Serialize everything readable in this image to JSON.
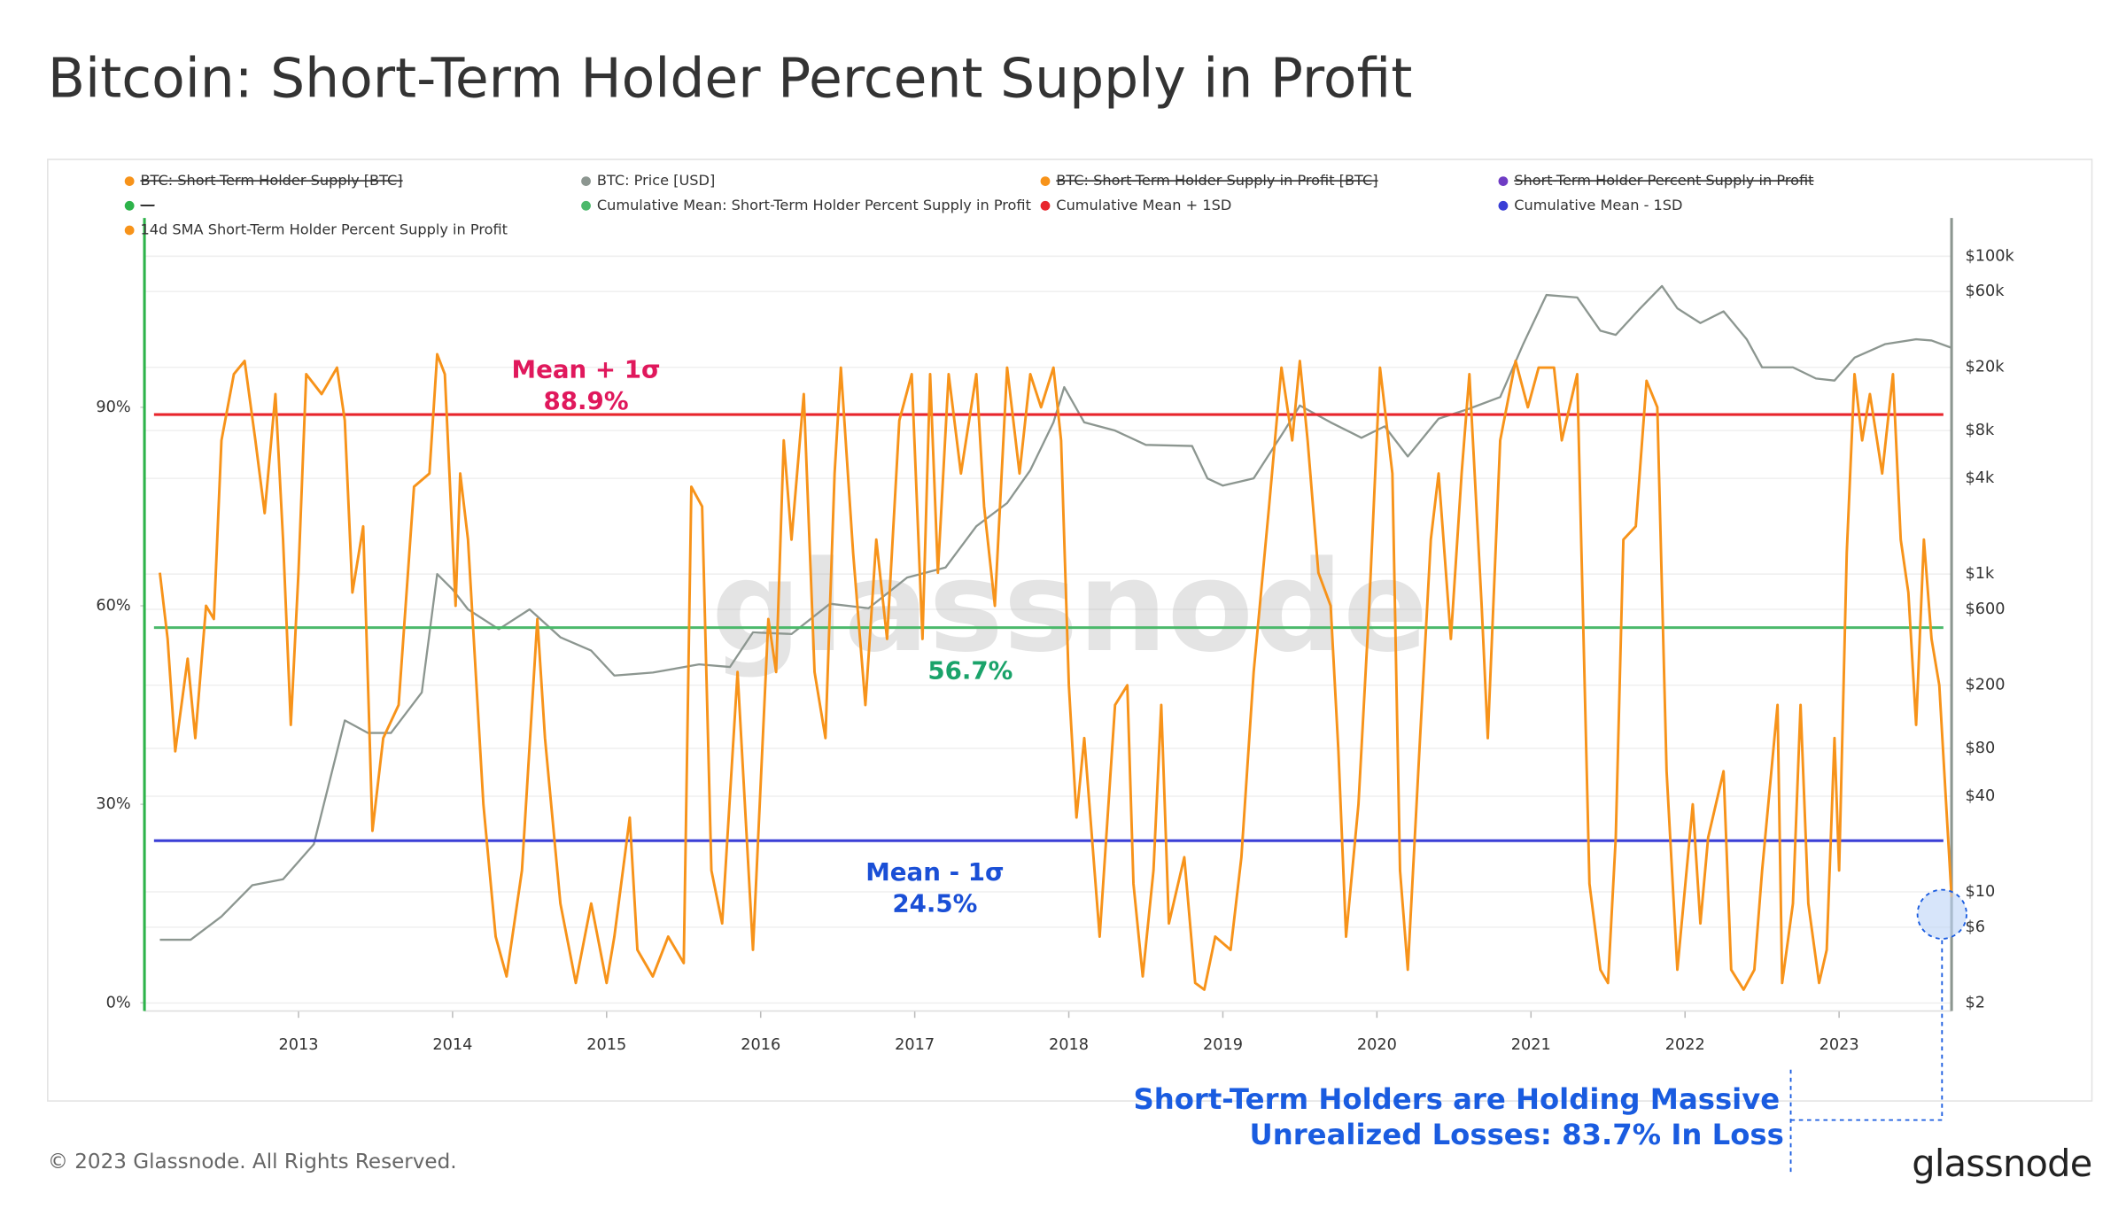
{
  "chart_data": {
    "type": "line",
    "title": "Bitcoin: Short-Term Holder Percent Supply in Profit",
    "watermark": "glassnode",
    "footer": "© 2023 Glassnode. All Rights Reserved.",
    "logo": "glassnode",
    "xlim": [
      2012,
      2023.73
    ],
    "xticks": [
      2013,
      2014,
      2015,
      2016,
      2017,
      2018,
      2019,
      2020,
      2021,
      2022,
      2023
    ],
    "ylim": [
      -1.24,
      118.6
    ],
    "yticks": [
      {
        "value": 0,
        "label": "0%"
      },
      {
        "value": 30,
        "label": "30%"
      },
      {
        "value": 60,
        "label": "60%"
      },
      {
        "value": 90,
        "label": "90%"
      }
    ],
    "y2lim": [
      1.78,
      174000
    ],
    "y2log": true,
    "y2ticks": [
      {
        "value": 2,
        "label": "$2"
      },
      {
        "value": 6,
        "label": "$6"
      },
      {
        "value": 10,
        "label": "$10"
      },
      {
        "value": 40,
        "label": "$40"
      },
      {
        "value": 80,
        "label": "$80"
      },
      {
        "value": 200,
        "label": "$200"
      },
      {
        "value": 600,
        "label": "$600"
      },
      {
        "value": 1000,
        "label": "$1k"
      },
      {
        "value": 4000,
        "label": "$4k"
      },
      {
        "value": 8000,
        "label": "$8k"
      },
      {
        "value": 20000,
        "label": "$20k"
      },
      {
        "value": 60000,
        "label": "$60k"
      },
      {
        "value": 100000,
        "label": "$100k"
      }
    ],
    "grid": true,
    "series": [
      {
        "name": "BTC: Short-Term Holder Supply [BTC]",
        "color": "#f7931a",
        "hidden": true
      },
      {
        "name": "BTC: Price [USD]",
        "color": "#8c9690",
        "axis": "y2",
        "x": [
          2012.1,
          2012.3,
          2012.5,
          2012.7,
          2012.9,
          2013.1,
          2013.3,
          2013.45,
          2013.6,
          2013.8,
          2013.9,
          2014.0,
          2014.1,
          2014.3,
          2014.5,
          2014.7,
          2014.9,
          2015.05,
          2015.3,
          2015.6,
          2015.8,
          2015.95,
          2016.2,
          2016.45,
          2016.7,
          2016.95,
          2017.2,
          2017.4,
          2017.6,
          2017.75,
          2017.9,
          2017.97,
          2018.1,
          2018.3,
          2018.5,
          2018.8,
          2018.9,
          2019.0,
          2019.2,
          2019.4,
          2019.5,
          2019.7,
          2019.9,
          2020.05,
          2020.2,
          2020.4,
          2020.6,
          2020.8,
          2020.95,
          2021.1,
          2021.3,
          2021.45,
          2021.55,
          2021.7,
          2021.85,
          2021.95,
          2022.1,
          2022.25,
          2022.4,
          2022.5,
          2022.7,
          2022.85,
          2022.97,
          2023.1,
          2023.3,
          2023.5,
          2023.6,
          2023.73
        ],
        "values": [
          5,
          5,
          7,
          11,
          12,
          20,
          120,
          100,
          100,
          180,
          1000,
          800,
          600,
          450,
          600,
          400,
          330,
          230,
          240,
          270,
          260,
          430,
          420,
          650,
          610,
          950,
          1100,
          2000,
          2800,
          4500,
          9000,
          15000,
          9000,
          8000,
          6500,
          6400,
          4000,
          3600,
          4000,
          8000,
          11500,
          9000,
          7200,
          8500,
          5500,
          9500,
          11000,
          13000,
          28000,
          57000,
          55000,
          34000,
          32000,
          46000,
          65000,
          47000,
          38000,
          45000,
          30000,
          20000,
          20000,
          17000,
          16500,
          23000,
          28000,
          30000,
          29500,
          26500
        ]
      },
      {
        "name": "BTC: Short-Term Holder Supply in Profit [BTC]",
        "color": "#f7931a",
        "hidden": true
      },
      {
        "name": "Short-Term Holder Percent Supply in Profit",
        "color": "#6f3cc4",
        "hidden": true
      },
      {
        "name": "—",
        "color": "#2db34a",
        "hidden": true
      },
      {
        "name": "Cumulative Mean: Short-Term Holder Percent Supply in Profit",
        "color": "#4cb96b",
        "value": 56.7
      },
      {
        "name": "Cumulative Mean + 1SD",
        "color": "#e8262c",
        "value": 88.9
      },
      {
        "name": "Cumulative Mean - 1SD",
        "color": "#3a3fd6",
        "value": 24.5
      },
      {
        "name": "14d SMA Short-Term Holder Percent Supply in Profit",
        "color": "#f7931a",
        "x": [
          2012.1,
          2012.15,
          2012.2,
          2012.28,
          2012.33,
          2012.4,
          2012.45,
          2012.5,
          2012.58,
          2012.65,
          2012.72,
          2012.78,
          2012.85,
          2012.9,
          2012.95,
          2013.0,
          2013.05,
          2013.15,
          2013.25,
          2013.3,
          2013.35,
          2013.42,
          2013.48,
          2013.55,
          2013.65,
          2013.75,
          2013.85,
          2013.9,
          2013.95,
          2014.02,
          2014.05,
          2014.1,
          2014.2,
          2014.28,
          2014.35,
          2014.45,
          2014.55,
          2014.6,
          2014.7,
          2014.8,
          2014.9,
          2015.0,
          2015.05,
          2015.15,
          2015.2,
          2015.3,
          2015.4,
          2015.5,
          2015.55,
          2015.62,
          2015.68,
          2015.75,
          2015.85,
          2015.95,
          2016.05,
          2016.1,
          2016.15,
          2016.2,
          2016.28,
          2016.35,
          2016.42,
          2016.48,
          2016.52,
          2016.6,
          2016.68,
          2016.75,
          2016.82,
          2016.9,
          2016.98,
          2017.05,
          2017.1,
          2017.15,
          2017.22,
          2017.3,
          2017.4,
          2017.45,
          2017.52,
          2017.6,
          2017.68,
          2017.75,
          2017.82,
          2017.9,
          2017.95,
          2018.0,
          2018.05,
          2018.1,
          2018.2,
          2018.3,
          2018.38,
          2018.42,
          2018.48,
          2018.55,
          2018.6,
          2018.65,
          2018.75,
          2018.82,
          2018.88,
          2018.95,
          2019.05,
          2019.12,
          2019.2,
          2019.3,
          2019.38,
          2019.45,
          2019.5,
          2019.55,
          2019.62,
          2019.7,
          2019.75,
          2019.8,
          2019.88,
          2019.95,
          2020.02,
          2020.1,
          2020.15,
          2020.2,
          2020.28,
          2020.35,
          2020.4,
          2020.48,
          2020.55,
          2020.6,
          2020.68,
          2020.72,
          2020.8,
          2020.9,
          2020.98,
          2021.05,
          2021.15,
          2021.2,
          2021.3,
          2021.38,
          2021.45,
          2021.5,
          2021.55,
          2021.6,
          2021.68,
          2021.75,
          2021.82,
          2021.88,
          2021.95,
          2022.05,
          2022.1,
          2022.15,
          2022.25,
          2022.3,
          2022.38,
          2022.45,
          2022.5,
          2022.6,
          2022.63,
          2022.7,
          2022.75,
          2022.8,
          2022.87,
          2022.92,
          2022.97,
          2023.0,
          2023.05,
          2023.1,
          2023.15,
          2023.2,
          2023.28,
          2023.35,
          2023.4,
          2023.45,
          2023.5,
          2023.55,
          2023.6,
          2023.65,
          2023.7,
          2023.73
        ],
        "values": [
          65,
          55,
          38,
          52,
          40,
          60,
          58,
          85,
          95,
          97,
          85,
          74,
          92,
          70,
          42,
          65,
          95,
          92,
          96,
          88,
          62,
          72,
          26,
          40,
          45,
          78,
          80,
          98,
          95,
          60,
          80,
          70,
          30,
          10,
          4,
          20,
          58,
          40,
          15,
          3,
          15,
          3,
          10,
          28,
          8,
          4,
          10,
          6,
          78,
          75,
          20,
          12,
          50,
          8,
          58,
          50,
          85,
          70,
          92,
          50,
          40,
          80,
          96,
          68,
          45,
          70,
          55,
          88,
          95,
          55,
          95,
          65,
          95,
          80,
          95,
          75,
          60,
          96,
          80,
          95,
          90,
          96,
          85,
          48,
          28,
          40,
          10,
          45,
          48,
          18,
          4,
          20,
          45,
          12,
          22,
          3,
          2,
          10,
          8,
          22,
          50,
          75,
          96,
          85,
          97,
          85,
          65,
          60,
          38,
          10,
          30,
          60,
          96,
          80,
          20,
          5,
          40,
          70,
          80,
          55,
          80,
          95,
          60,
          40,
          85,
          97,
          90,
          96,
          96,
          85,
          95,
          18,
          5,
          3,
          25,
          70,
          72,
          94,
          90,
          35,
          5,
          30,
          12,
          25,
          35,
          5,
          2,
          5,
          20,
          45,
          3,
          15,
          45,
          15,
          3,
          8,
          40,
          20,
          68,
          95,
          85,
          92,
          80,
          95,
          70,
          62,
          42,
          70,
          55,
          48,
          28,
          16
        ]
      }
    ],
    "annotations": [
      {
        "text": [
          "Mean + 1σ",
          "88.9%"
        ],
        "color": "#e0185c"
      },
      {
        "text": [
          "56.7%"
        ],
        "color": "#1aa36a"
      },
      {
        "text": [
          "Mean - 1σ",
          "24.5%"
        ],
        "color": "#1a4fd6"
      },
      {
        "text": [
          "Short-Term Holders are Holding Massive",
          "Unrealized Losses: 83.7% In Loss"
        ],
        "color": "#1a5ce0"
      }
    ]
  }
}
